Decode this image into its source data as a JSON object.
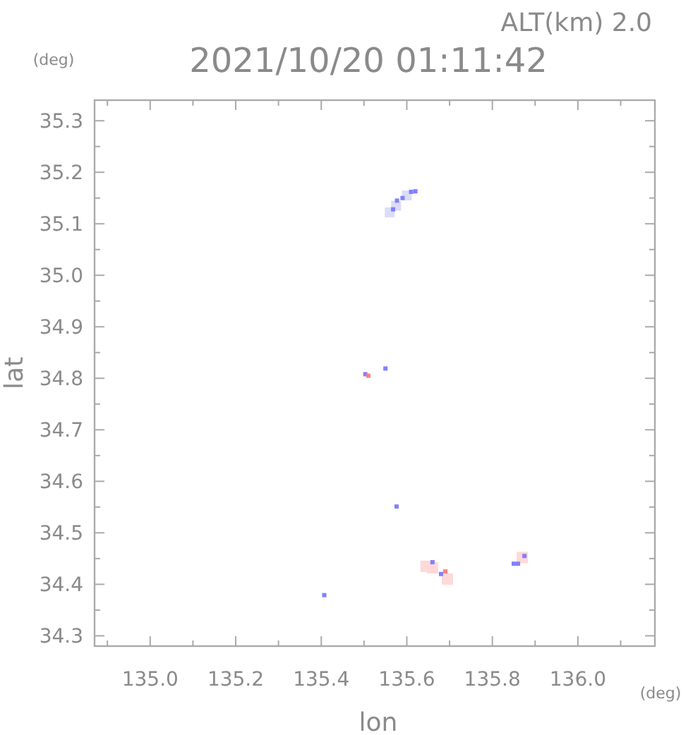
{
  "chart_data": {
    "type": "scatter",
    "title": "2021/10/20 01:11:42",
    "subtitle": "ALT(km) 2.0",
    "xlabel": "lon",
    "ylabel": "lat",
    "annotations": [
      "(deg)",
      "(deg)"
    ],
    "xlim": [
      134.87,
      136.18
    ],
    "ylim": [
      34.28,
      35.34
    ],
    "xticks": [
      {
        "value": 134.9,
        "label": null
      },
      {
        "value": 135.0,
        "label": "135.0"
      },
      {
        "value": 135.1,
        "label": null
      },
      {
        "value": 135.2,
        "label": "135.2"
      },
      {
        "value": 135.3,
        "label": null
      },
      {
        "value": 135.4,
        "label": "135.4"
      },
      {
        "value": 135.5,
        "label": null
      },
      {
        "value": 135.6,
        "label": "135.6"
      },
      {
        "value": 135.7,
        "label": null
      },
      {
        "value": 135.8,
        "label": "135.8"
      },
      {
        "value": 135.9,
        "label": null
      },
      {
        "value": 136.0,
        "label": "136.0"
      },
      {
        "value": 136.1,
        "label": null
      }
    ],
    "yticks": [
      {
        "value": 34.3,
        "label": "34.3"
      },
      {
        "value": 34.35,
        "label": null
      },
      {
        "value": 34.4,
        "label": "34.4"
      },
      {
        "value": 34.45,
        "label": null
      },
      {
        "value": 34.5,
        "label": "34.5"
      },
      {
        "value": 34.55,
        "label": null
      },
      {
        "value": 34.6,
        "label": "34.6"
      },
      {
        "value": 34.65,
        "label": null
      },
      {
        "value": 34.7,
        "label": "34.7"
      },
      {
        "value": 34.75,
        "label": null
      },
      {
        "value": 34.8,
        "label": "34.8"
      },
      {
        "value": 34.85,
        "label": null
      },
      {
        "value": 34.9,
        "label": "34.9"
      },
      {
        "value": 34.95,
        "label": null
      },
      {
        "value": 35.0,
        "label": "35.0"
      },
      {
        "value": 35.05,
        "label": null
      },
      {
        "value": 35.1,
        "label": "35.1"
      },
      {
        "value": 35.15,
        "label": null
      },
      {
        "value": 35.2,
        "label": "35.2"
      },
      {
        "value": 35.25,
        "label": null
      },
      {
        "value": 35.3,
        "label": "35.3"
      }
    ],
    "grid": false,
    "marker": "square",
    "series": [
      {
        "color": "#dcdcf8",
        "x": [
          135.56,
          135.575,
          135.6
        ],
        "values": [
          35.122,
          35.135,
          35.155
        ]
      },
      {
        "color": "#ffd8d8",
        "x": [
          135.645,
          135.66,
          135.695,
          135.87
        ],
        "values": [
          34.435,
          34.432,
          34.41,
          34.452
        ]
      },
      {
        "color": "#8080ff",
        "x": [
          135.577,
          135.59,
          135.61,
          135.62,
          135.568,
          135.503,
          135.55,
          135.576,
          135.407,
          135.66,
          135.68,
          135.85,
          135.875,
          135.86
        ],
        "values": [
          35.145,
          35.15,
          35.162,
          35.163,
          35.128,
          34.808,
          34.819,
          34.551,
          34.379,
          34.443,
          34.42,
          34.44,
          34.455,
          34.44
        ]
      },
      {
        "color": "#ff8080",
        "x": [
          135.51,
          135.69
        ],
        "values": [
          34.805,
          34.425
        ]
      }
    ]
  }
}
